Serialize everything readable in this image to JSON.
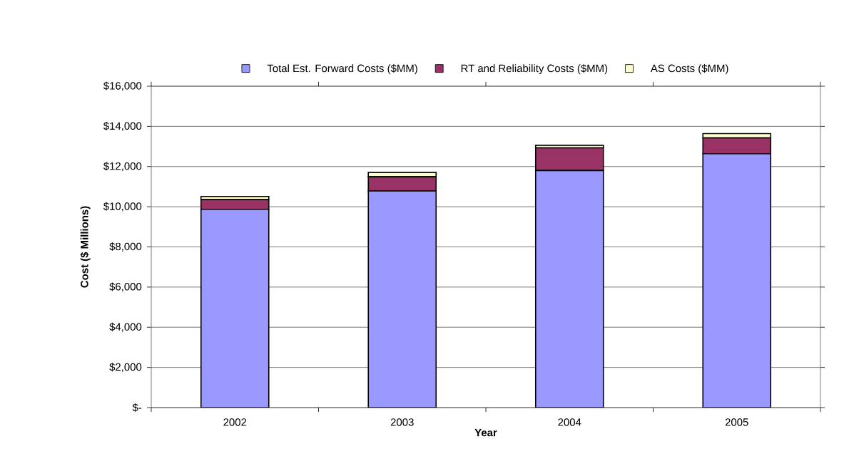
{
  "chart_data": {
    "type": "bar",
    "stacked": true,
    "xlabel": "Year",
    "ylabel": "Cost ($ Millions)",
    "categories": [
      "2002",
      "2003",
      "2004",
      "2005"
    ],
    "series": [
      {
        "name": "Total Est. Forward Costs ($MM)",
        "color": "#9999ff",
        "values": [
          9870,
          10790,
          11800,
          12640
        ]
      },
      {
        "name": "RT and Reliability Costs ($MM)",
        "color": "#993366",
        "values": [
          490,
          700,
          1130,
          790
        ]
      },
      {
        "name": "AS Costs ($MM)",
        "color": "#ffffcc",
        "values": [
          150,
          220,
          130,
          210
        ]
      }
    ],
    "ylim": [
      0,
      16000
    ],
    "yticks": [
      {
        "value": 0,
        "label": "$-"
      },
      {
        "value": 2000,
        "label": "$2,000"
      },
      {
        "value": 4000,
        "label": "$4,000"
      },
      {
        "value": 6000,
        "label": "$6,000"
      },
      {
        "value": 8000,
        "label": "$8,000"
      },
      {
        "value": 10000,
        "label": "$10,000"
      },
      {
        "value": 12000,
        "label": "$12,000"
      },
      {
        "value": 14000,
        "label": "$14,000"
      },
      {
        "value": 16000,
        "label": "$16,000"
      }
    ],
    "grid": "y",
    "legend": "top"
  }
}
